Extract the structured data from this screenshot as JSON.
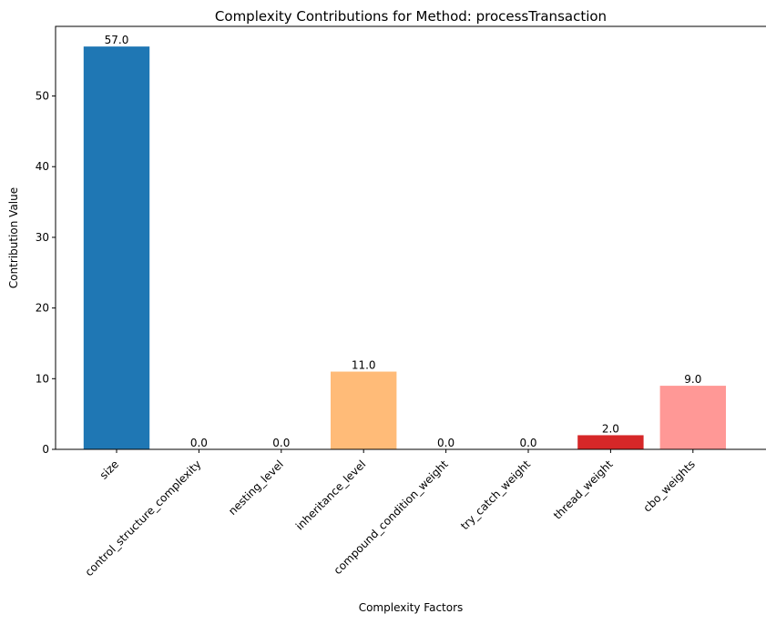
{
  "chart_data": {
    "type": "bar",
    "title": "Complexity Contributions for Method: processTransaction",
    "xlabel": "Complexity Factors",
    "ylabel": "Contribution Value",
    "categories": [
      "size",
      "control_structure_complexity",
      "nesting_level",
      "inheritance_level",
      "compound_condition_weight",
      "try_catch_weight",
      "thread_weight",
      "cbo_weights"
    ],
    "values": [
      57.0,
      0.0,
      0.0,
      11.0,
      0.0,
      0.0,
      2.0,
      9.0
    ],
    "value_labels": [
      "57.0",
      "0.0",
      "0.0",
      "11.0",
      "0.0",
      "0.0",
      "2.0",
      "9.0"
    ],
    "colors": [
      "#1f77b4",
      "#aec7e8",
      "#ff7f0e",
      "#ffbb78",
      "#2ca02c",
      "#98df8a",
      "#d62728",
      "#ff9896"
    ],
    "yticks": [
      0,
      10,
      20,
      30,
      40,
      50
    ],
    "ylim": [
      0,
      59.85
    ],
    "grid": false
  }
}
